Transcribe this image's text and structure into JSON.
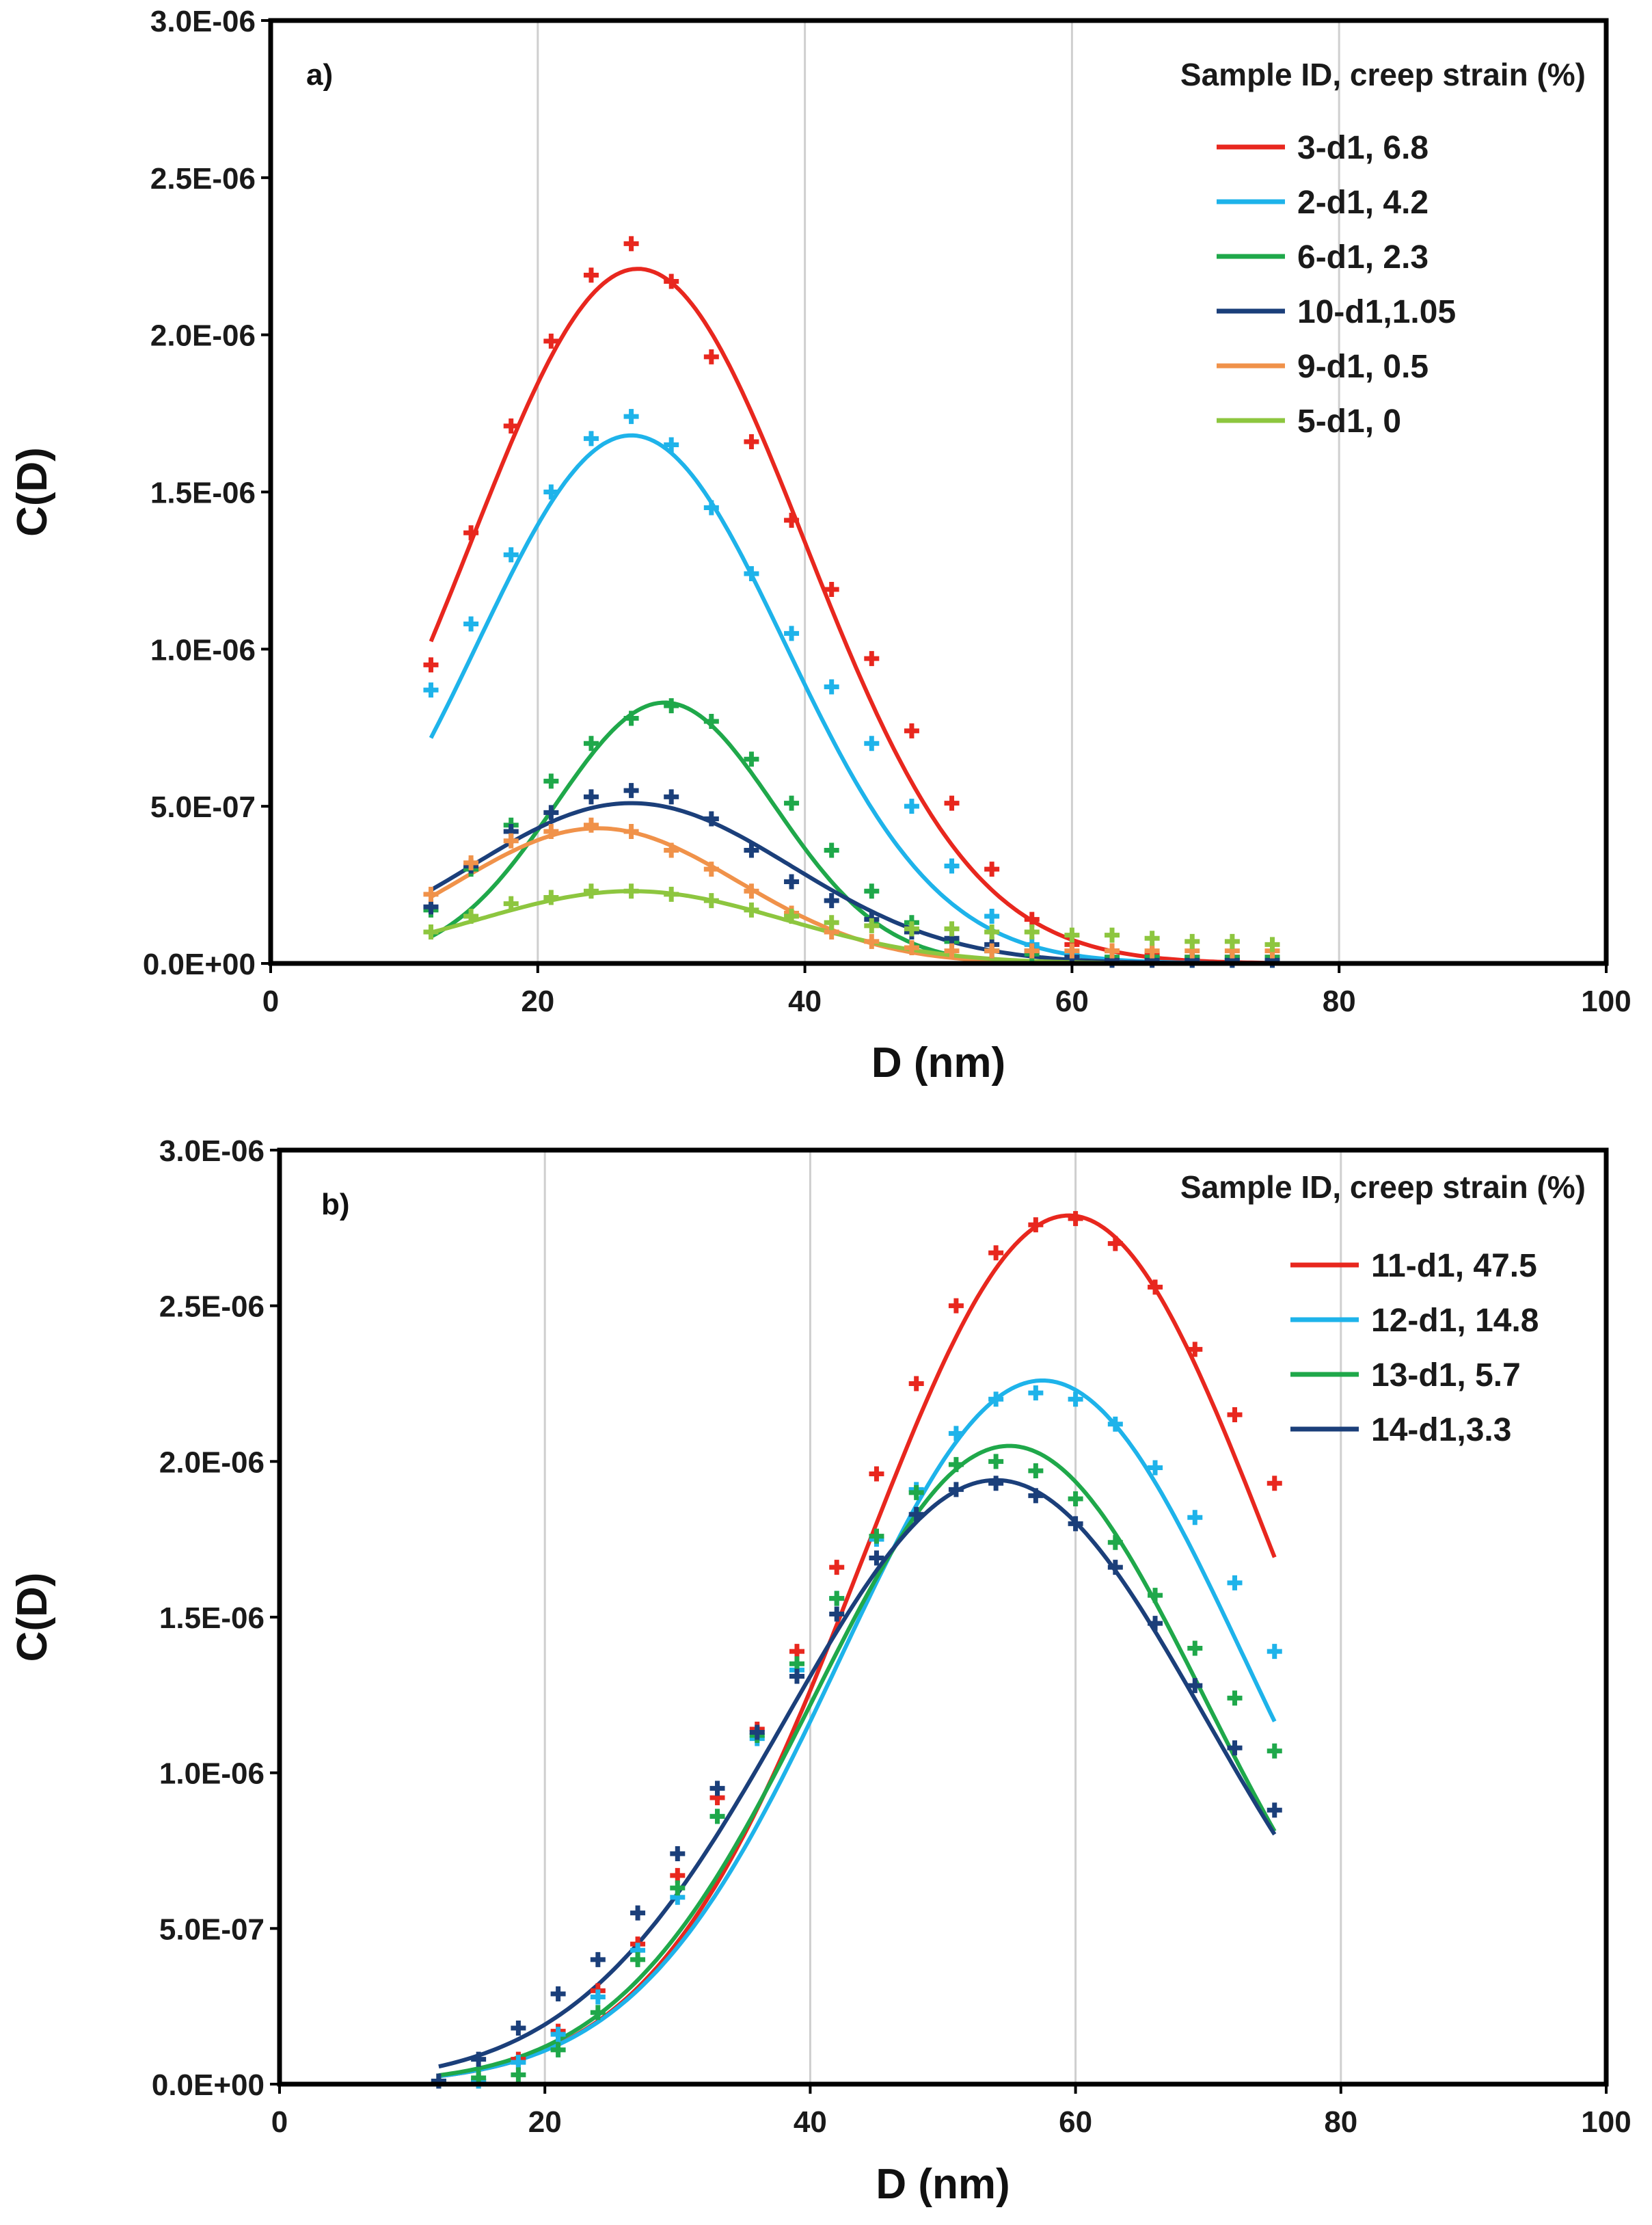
{
  "chart_data": [
    {
      "panel": "a)",
      "type": "scatter",
      "xlabel": "D (nm)",
      "ylabel": "C(D)",
      "xlim": [
        0,
        100
      ],
      "ylim": [
        0,
        3e-06
      ],
      "xticks": [
        0,
        20,
        40,
        60,
        80,
        100
      ],
      "xtick_labels": [
        "0",
        "20",
        "40",
        "60",
        "80",
        "100"
      ],
      "yticks": [
        0,
        5e-07,
        1e-06,
        1.5e-06,
        2e-06,
        2.5e-06,
        3e-06
      ],
      "ytick_labels": [
        "0.0E+00",
        "5.0E-07",
        "1.0E-06",
        "1.5E-06",
        "2.0E-06",
        "2.5E-06",
        "3.0E-06"
      ],
      "grid": "vertical",
      "legend": {
        "title": "Sample ID, creep strain (%)",
        "placement": "top-right"
      },
      "x": [
        12,
        15,
        18,
        21,
        24,
        27,
        30,
        33,
        36,
        39,
        42,
        45,
        48,
        51,
        54,
        57,
        60,
        63,
        66,
        69,
        72,
        75
      ],
      "series": [
        {
          "name": "3-d1, 6.8",
          "color": "#e8271e",
          "fit": {
            "kind": "gaussian",
            "amplitude": 2.21e-06,
            "center": 27.5,
            "sigma": 12.5
          },
          "points": [
            9.5e-07,
            1.37e-06,
            1.71e-06,
            1.98e-06,
            2.19e-06,
            2.29e-06,
            2.17e-06,
            1.93e-06,
            1.66e-06,
            1.41e-06,
            1.19e-06,
            9.7e-07,
            7.4e-07,
            5.1e-07,
            3e-07,
            1.4e-07,
            6e-08,
            4e-08,
            3e-08,
            2e-08,
            2e-08,
            2e-08
          ]
        },
        {
          "name": "2-d1, 4.2",
          "color": "#1eb3ea",
          "fit": {
            "kind": "gaussian",
            "amplitude": 1.68e-06,
            "center": 27,
            "sigma": 11.5
          },
          "points": [
            8.7e-07,
            1.08e-06,
            1.3e-06,
            1.5e-06,
            1.67e-06,
            1.74e-06,
            1.65e-06,
            1.45e-06,
            1.24e-06,
            1.05e-06,
            8.8e-07,
            7e-07,
            5e-07,
            3.1e-07,
            1.5e-07,
            6e-08,
            3e-08,
            2e-08,
            2e-08,
            1e-08,
            1e-08,
            1e-08
          ]
        },
        {
          "name": "6-d1, 2.3",
          "color": "#1fa84a",
          "fit": {
            "kind": "gaussian",
            "amplitude": 8.3e-07,
            "center": 29.5,
            "sigma": 8.2
          },
          "points": [
            1.7e-07,
            3e-07,
            4.4e-07,
            5.8e-07,
            7e-07,
            7.8e-07,
            8.2e-07,
            7.7e-07,
            6.5e-07,
            5.1e-07,
            3.6e-07,
            2.3e-07,
            1.3e-07,
            7e-08,
            4e-08,
            3e-08,
            2e-08,
            2e-08,
            2e-08,
            2e-08,
            2e-08,
            2e-08
          ]
        },
        {
          "name": "10-d1,1.05",
          "color": "#1b3f7a",
          "fit": {
            "kind": "gaussian",
            "amplitude": 5.1e-07,
            "center": 27,
            "sigma": 12
          },
          "points": [
            1.8e-07,
            3.1e-07,
            4.2e-07,
            4.8e-07,
            5.3e-07,
            5.5e-07,
            5.3e-07,
            4.6e-07,
            3.6e-07,
            2.6e-07,
            2e-07,
            1.4e-07,
            1e-07,
            8e-08,
            6e-08,
            4e-08,
            2e-08,
            1e-08,
            1e-08,
            1e-08,
            1e-08,
            1e-08
          ]
        },
        {
          "name": "9-d1, 0.5",
          "color": "#f0924a",
          "fit": {
            "kind": "gaussian",
            "amplitude": 4.3e-07,
            "center": 24.5,
            "sigma": 10.5
          },
          "points": [
            2.2e-07,
            3.2e-07,
            3.9e-07,
            4.2e-07,
            4.4e-07,
            4.2e-07,
            3.6e-07,
            3e-07,
            2.3e-07,
            1.6e-07,
            1e-07,
            7e-08,
            5e-08,
            4e-08,
            4e-08,
            4e-08,
            4e-08,
            4e-08,
            4e-08,
            4e-08,
            4e-08,
            4e-08
          ]
        },
        {
          "name": "5-d1, 0",
          "color": "#8dc63f",
          "fit": {
            "kind": "gaussian",
            "amplitude": 2.3e-07,
            "center": 27,
            "sigma": 11.5
          },
          "points": [
            1e-07,
            1.5e-07,
            1.9e-07,
            2.1e-07,
            2.3e-07,
            2.3e-07,
            2.2e-07,
            2e-07,
            1.7e-07,
            1.5e-07,
            1.3e-07,
            1.2e-07,
            1.1e-07,
            1.1e-07,
            1e-07,
            1e-07,
            9e-08,
            9e-08,
            8e-08,
            7e-08,
            7e-08,
            6e-08
          ]
        }
      ]
    },
    {
      "panel": "b)",
      "type": "scatter",
      "xlabel": "D (nm)",
      "ylabel": "C(D)",
      "xlim": [
        0,
        100
      ],
      "ylim": [
        0,
        3e-06
      ],
      "xticks": [
        0,
        20,
        40,
        60,
        80,
        100
      ],
      "xtick_labels": [
        "0",
        "20",
        "40",
        "60",
        "80",
        "100"
      ],
      "yticks": [
        0,
        5e-07,
        1e-06,
        1.5e-06,
        2e-06,
        2.5e-06,
        3e-06
      ],
      "ytick_labels": [
        "0.0E+00",
        "5.0E-07",
        "1.0E-06",
        "1.5E-06",
        "2.0E-06",
        "2.5E-06",
        "3.0E-06"
      ],
      "grid": "vertical",
      "legend": {
        "title": "Sample ID, creep strain (%)",
        "placement": "top-right"
      },
      "x": [
        12,
        15,
        18,
        21,
        24,
        27,
        30,
        33,
        36,
        39,
        42,
        45,
        48,
        51,
        54,
        57,
        60,
        63,
        66,
        69,
        72,
        75
      ],
      "series": [
        {
          "name": "11-d1, 47.5",
          "color": "#e8271e",
          "fit": {
            "kind": "gaussian",
            "amplitude": 2.79e-06,
            "center": 59.5,
            "sigma": 15.5
          },
          "points": [
            1e-08,
            1e-08,
            8e-08,
            1.7e-07,
            3e-07,
            4.5e-07,
            6.7e-07,
            9.2e-07,
            1.14e-06,
            1.39e-06,
            1.66e-06,
            1.96e-06,
            2.25e-06,
            2.5e-06,
            2.67e-06,
            2.76e-06,
            2.78e-06,
            2.7e-06,
            2.56e-06,
            2.36e-06,
            2.15e-06,
            1.93e-06
          ]
        },
        {
          "name": "12-d1, 14.8",
          "color": "#1eb3ea",
          "fit": {
            "kind": "gaussian",
            "amplitude": 2.26e-06,
            "center": 57.5,
            "sigma": 15.2
          },
          "points": [
            1e-08,
            1e-08,
            7e-08,
            1.6e-07,
            2.8e-07,
            4.3e-07,
            6e-07,
            8.6e-07,
            1.11e-06,
            1.33e-06,
            1.56e-06,
            1.75e-06,
            1.91e-06,
            2.09e-06,
            2.2e-06,
            2.22e-06,
            2.2e-06,
            2.12e-06,
            1.98e-06,
            1.82e-06,
            1.61e-06,
            1.39e-06
          ]
        },
        {
          "name": "13-d1, 5.7",
          "color": "#1fa84a",
          "fit": {
            "kind": "gaussian",
            "amplitude": 2.05e-06,
            "center": 55,
            "sigma": 14.7
          },
          "points": [
            1e-08,
            2e-08,
            3e-08,
            1.1e-07,
            2.3e-07,
            4e-07,
            6.3e-07,
            8.6e-07,
            1.12e-06,
            1.35e-06,
            1.56e-06,
            1.76e-06,
            1.9e-06,
            1.99e-06,
            2e-06,
            1.97e-06,
            1.88e-06,
            1.74e-06,
            1.57e-06,
            1.4e-06,
            1.24e-06,
            1.07e-06
          ]
        },
        {
          "name": "14-d1,3.3",
          "color": "#1b3f7a",
          "fit": {
            "kind": "gaussian",
            "amplitude": 1.94e-06,
            "center": 54,
            "sigma": 15.8
          },
          "points": [
            1e-08,
            8e-08,
            1.8e-07,
            2.9e-07,
            4e-07,
            5.5e-07,
            7.4e-07,
            9.5e-07,
            1.13e-06,
            1.31e-06,
            1.51e-06,
            1.69e-06,
            1.83e-06,
            1.91e-06,
            1.93e-06,
            1.89e-06,
            1.8e-06,
            1.66e-06,
            1.48e-06,
            1.28e-06,
            1.08e-06,
            8.8e-07
          ]
        }
      ]
    }
  ]
}
